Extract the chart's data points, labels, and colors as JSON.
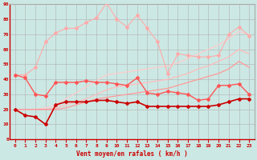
{
  "xlabel": "Vent moyen/en rafales ( km/h )",
  "background_color": "#cce8e4",
  "grid_color": "#b0b0b0",
  "x": [
    0,
    1,
    2,
    3,
    4,
    5,
    6,
    7,
    8,
    9,
    10,
    11,
    12,
    13,
    14,
    15,
    16,
    17,
    18,
    19,
    20,
    21,
    22,
    23
  ],
  "series": [
    {
      "y": [
        43,
        43,
        48,
        65,
        71,
        74,
        74,
        78,
        81,
        91,
        80,
        75,
        83,
        74,
        65,
        44,
        57,
        56,
        55,
        55,
        56,
        70,
        75,
        69
      ],
      "color": "#ffaaaa",
      "marker": "D",
      "lw": 0.8,
      "ms": 2.0,
      "zorder": 3
    },
    {
      "y": [
        20,
        20,
        20,
        21,
        23,
        27,
        31,
        35,
        39,
        43,
        44,
        45,
        46,
        47,
        48,
        49,
        51,
        54,
        57,
        60,
        63,
        67,
        72,
        70
      ],
      "color": "#ffcccc",
      "marker": null,
      "lw": 0.9,
      "ms": 0,
      "zorder": 2
    },
    {
      "y": [
        20,
        20,
        20,
        20,
        21,
        23,
        25,
        27,
        30,
        33,
        35,
        36,
        37,
        38,
        39,
        40,
        42,
        44,
        47,
        49,
        52,
        55,
        60,
        57
      ],
      "color": "#ffbbbb",
      "marker": null,
      "lw": 0.9,
      "ms": 0,
      "zorder": 2
    },
    {
      "y": [
        20,
        20,
        20,
        20,
        20,
        21,
        23,
        25,
        27,
        28,
        29,
        30,
        31,
        32,
        33,
        34,
        36,
        38,
        40,
        42,
        44,
        47,
        52,
        48
      ],
      "color": "#ff9999",
      "marker": null,
      "lw": 0.9,
      "ms": 0,
      "zorder": 2
    },
    {
      "y": [
        43,
        41,
        30,
        29,
        38,
        38,
        38,
        39,
        38,
        38,
        37,
        36,
        41,
        31,
        30,
        32,
        31,
        30,
        26,
        27,
        36,
        36,
        37,
        30
      ],
      "color": "#ff5555",
      "marker": "D",
      "lw": 1.0,
      "ms": 2.0,
      "zorder": 4
    },
    {
      "y": [
        20,
        16,
        15,
        10,
        23,
        25,
        25,
        25,
        26,
        26,
        25,
        24,
        25,
        22,
        22,
        22,
        22,
        22,
        22,
        22,
        23,
        25,
        27,
        27
      ],
      "color": "#cc0000",
      "marker": "D",
      "lw": 1.2,
      "ms": 2.0,
      "zorder": 5
    }
  ],
  "ylim": [
    0,
    90
  ],
  "yticks": [
    0,
    10,
    20,
    30,
    40,
    50,
    60,
    70,
    80,
    90
  ],
  "xlim": [
    -0.5,
    23.5
  ],
  "xticks": [
    0,
    1,
    2,
    3,
    4,
    5,
    6,
    7,
    8,
    9,
    10,
    11,
    12,
    13,
    14,
    15,
    16,
    17,
    18,
    19,
    20,
    21,
    22,
    23
  ]
}
